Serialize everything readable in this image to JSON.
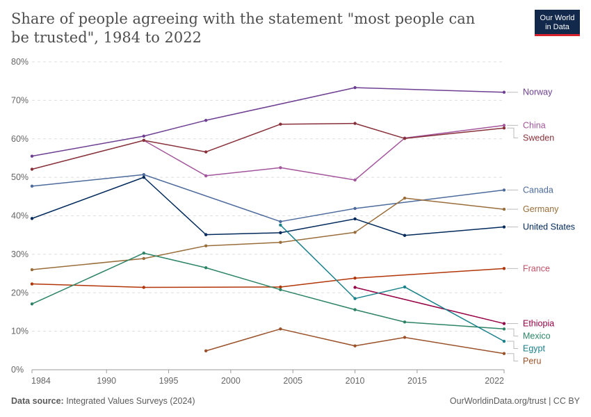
{
  "header": {
    "title": "Share of people agreeing with the statement \"most people can be trusted\", 1984 to 2022",
    "logo_line1": "Our World",
    "logo_line2": "in Data"
  },
  "footer": {
    "source_label": "Data source:",
    "source_text": "Integrated Values Surveys (2024)",
    "credit": "OurWorldinData.org/trust | CC BY"
  },
  "chart_data": {
    "type": "line",
    "title": "Share of people agreeing with the statement \"most people can be trusted\", 1984 to 2022",
    "xlabel": "",
    "ylabel": "",
    "xlim": [
      1984,
      2022
    ],
    "ylim": [
      0,
      80
    ],
    "x_ticks": [
      1984,
      1990,
      1995,
      2000,
      2005,
      2010,
      2015,
      2022
    ],
    "y_ticks": [
      0,
      10,
      20,
      30,
      40,
      50,
      60,
      70,
      80
    ],
    "y_tick_labels": [
      "0%",
      "10%",
      "20%",
      "30%",
      "40%",
      "50%",
      "60%",
      "70%",
      "80%"
    ],
    "grid": "horizontal dashed",
    "legend": "right (direct labels)",
    "series": [
      {
        "name": "Norway",
        "color": "#6d3e91",
        "points": [
          [
            1984,
            55.5
          ],
          [
            1993,
            60.7
          ],
          [
            1998,
            64.8
          ],
          [
            2010,
            73.3
          ],
          [
            2022,
            72.1
          ]
        ]
      },
      {
        "name": "China",
        "color": "#a2559c",
        "points": [
          [
            1993,
            59.6
          ],
          [
            1998,
            50.4
          ],
          [
            2004,
            52.5
          ],
          [
            2010,
            49.3
          ],
          [
            2014,
            60.2
          ],
          [
            2022,
            63.5
          ]
        ]
      },
      {
        "name": "Sweden",
        "color": "#883039",
        "points": [
          [
            1984,
            52.1
          ],
          [
            1993,
            59.6
          ],
          [
            1998,
            56.6
          ],
          [
            2004,
            63.8
          ],
          [
            2010,
            64.0
          ],
          [
            2014,
            60.1
          ],
          [
            2022,
            62.8
          ]
        ]
      },
      {
        "name": "Canada",
        "color": "#4c6a9c",
        "points": [
          [
            1984,
            47.7
          ],
          [
            1993,
            50.7
          ],
          [
            2004,
            38.5
          ],
          [
            2010,
            41.9
          ],
          [
            2022,
            46.7
          ]
        ]
      },
      {
        "name": "Germany",
        "color": "#996d39",
        "points": [
          [
            1984,
            26.0
          ],
          [
            1993,
            28.9
          ],
          [
            1998,
            32.2
          ],
          [
            2004,
            33.1
          ],
          [
            2010,
            35.7
          ],
          [
            2014,
            44.6
          ],
          [
            2022,
            41.7
          ]
        ]
      },
      {
        "name": "United States",
        "color": "#00295b",
        "points": [
          [
            1984,
            39.3
          ],
          [
            1993,
            50.0
          ],
          [
            1998,
            35.1
          ],
          [
            2004,
            35.6
          ],
          [
            2010,
            39.2
          ],
          [
            2014,
            34.9
          ],
          [
            2022,
            37.1
          ]
        ]
      },
      {
        "name": "France",
        "color": "#c15065",
        "line_color": "#b13507",
        "points": [
          [
            1984,
            22.3
          ],
          [
            1993,
            21.4
          ],
          [
            2004,
            21.5
          ],
          [
            2010,
            23.8
          ],
          [
            2022,
            26.3
          ]
        ]
      },
      {
        "name": "Ethiopia",
        "color": "#970046",
        "points": [
          [
            2010,
            21.4
          ],
          [
            2022,
            12.0
          ]
        ]
      },
      {
        "name": "Mexico",
        "color": "#2c8465",
        "points": [
          [
            1984,
            17.1
          ],
          [
            1993,
            30.3
          ],
          [
            1998,
            26.5
          ],
          [
            2004,
            20.8
          ],
          [
            2010,
            15.6
          ],
          [
            2014,
            12.4
          ],
          [
            2022,
            10.6
          ]
        ]
      },
      {
        "name": "Egypt",
        "color": "#18818a",
        "points": [
          [
            2004,
            37.6
          ],
          [
            2010,
            18.5
          ],
          [
            2014,
            21.5
          ],
          [
            2022,
            7.4
          ]
        ]
      },
      {
        "name": "Peru",
        "color": "#9a5129",
        "points": [
          [
            1998,
            4.9
          ],
          [
            2004,
            10.6
          ],
          [
            2010,
            6.2
          ],
          [
            2014,
            8.4
          ],
          [
            2022,
            4.2
          ]
        ]
      }
    ]
  }
}
